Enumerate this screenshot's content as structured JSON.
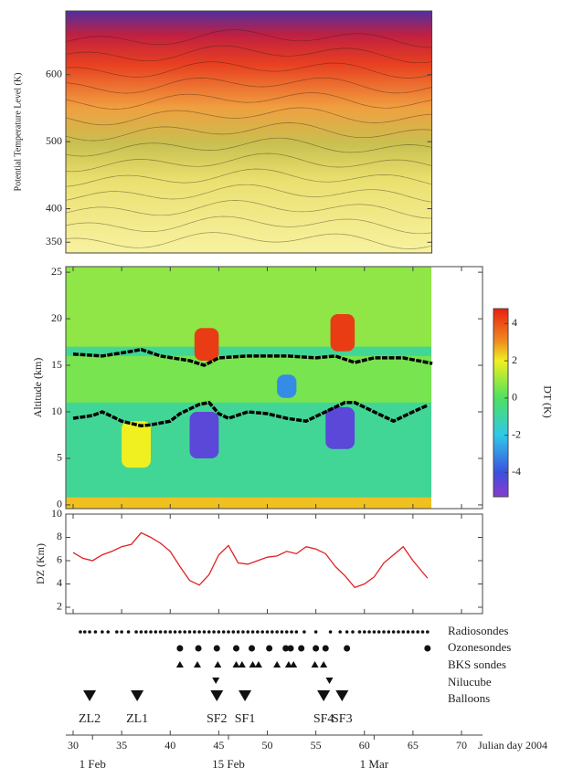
{
  "chart_data": [
    {
      "type": "contour",
      "ylabel": "Potential Temperature Level (K)",
      "ylim": [
        334,
        695
      ],
      "yticks": [
        350,
        400,
        500,
        600
      ],
      "xlim": [
        29.3,
        67
      ]
    },
    {
      "type": "heatmap",
      "ylabel": "Altitude (km)",
      "ylim": [
        -0.4,
        25.6
      ],
      "yticks": [
        0,
        5,
        10,
        15,
        20,
        25
      ],
      "xlim": [
        29.3,
        72
      ],
      "colorscale": [
        [
          -5,
          "#7b3fd0"
        ],
        [
          -4,
          "#3a50e0"
        ],
        [
          -2,
          "#30c8e8"
        ],
        [
          0,
          "#4ee060"
        ],
        [
          2,
          "#f0f020"
        ],
        [
          3,
          "#f09020"
        ],
        [
          5,
          "#e82010"
        ]
      ],
      "colorbar": {
        "label": "DT (K)",
        "lim": [
          -5.3,
          4.8
        ],
        "ticks": [
          -4,
          -2,
          0,
          2,
          4
        ]
      },
      "patches": [
        {
          "x": [
            29.3,
            67
          ],
          "y": [
            -0.4,
            25.6
          ],
          "value": -0.8
        },
        {
          "x": [
            29.3,
            67
          ],
          "y": [
            11,
            16
          ],
          "value": 0.5
        },
        {
          "x": [
            29.3,
            67
          ],
          "y": [
            17,
            25.6
          ],
          "value": 0.8
        },
        {
          "x": [
            29.3,
            67
          ],
          "y": [
            -0.4,
            0.8
          ],
          "value": 2.5
        },
        {
          "x": [
            35,
            38
          ],
          "y": [
            4,
            9
          ],
          "value": 2
        },
        {
          "x": [
            51,
            53
          ],
          "y": [
            11.5,
            14
          ],
          "value": -3
        },
        {
          "x": [
            42.5,
            45
          ],
          "y": [
            15.5,
            19
          ],
          "value": 4.5
        },
        {
          "x": [
            56.5,
            59
          ],
          "y": [
            16.5,
            20.5
          ],
          "value": 4.5
        },
        {
          "x": [
            42,
            45
          ],
          "y": [
            5,
            10
          ],
          "value": -4.5
        },
        {
          "x": [
            56,
            59
          ],
          "y": [
            6,
            10.5
          ],
          "value": -4.5
        }
      ],
      "lines": [
        {
          "color": "#000000",
          "x": [
            30,
            33,
            36,
            37,
            39,
            42,
            43.5,
            45,
            48,
            52,
            55,
            57,
            59,
            61,
            64,
            67
          ],
          "values": [
            16.2,
            16.0,
            16.5,
            16.7,
            16.0,
            15.5,
            15.0,
            15.8,
            16.0,
            16.0,
            15.8,
            16.0,
            15.3,
            15.8,
            15.8,
            15.2
          ]
        },
        {
          "color": "#000000",
          "x": [
            30,
            32,
            33,
            34,
            35,
            37,
            38,
            40,
            41,
            43,
            44,
            45,
            46,
            48,
            50,
            52,
            54,
            56,
            58,
            59,
            60,
            62,
            63,
            65,
            66.5
          ],
          "values": [
            9.3,
            9.6,
            10.0,
            9.5,
            9.0,
            8.5,
            8.6,
            9.0,
            9.8,
            10.8,
            11.0,
            9.8,
            9.3,
            10.0,
            9.8,
            9.3,
            9.0,
            10.0,
            11.0,
            11.0,
            10.5,
            9.5,
            9.0,
            10.0,
            10.7
          ]
        }
      ]
    },
    {
      "type": "line",
      "ylabel": "DZ (Km)",
      "ylim": [
        1.45,
        10
      ],
      "yticks": [
        2,
        4,
        6,
        8,
        10
      ],
      "xlim": [
        29.3,
        72
      ],
      "color": "#e02020",
      "x": [
        30,
        31,
        32,
        33,
        34,
        35,
        36,
        37,
        38,
        39,
        40,
        41,
        42,
        43,
        44,
        45,
        46,
        47,
        48,
        49,
        50,
        51,
        52,
        53,
        54,
        55,
        56,
        57,
        58,
        59,
        60,
        61,
        62,
        63,
        64,
        65,
        66,
        66.5
      ],
      "values": [
        6.7,
        6.2,
        6.0,
        6.5,
        6.8,
        7.2,
        7.4,
        8.4,
        8.0,
        7.5,
        6.8,
        5.5,
        4.3,
        3.9,
        4.8,
        6.5,
        7.3,
        5.8,
        5.7,
        6.0,
        6.3,
        6.4,
        6.8,
        6.6,
        7.2,
        7.0,
        6.6,
        5.5,
        4.7,
        3.7,
        4.0,
        4.6,
        5.8,
        6.5,
        7.2,
        6.0,
        5.0,
        4.5
      ]
    },
    {
      "type": "events",
      "xlim": [
        29.3,
        72
      ],
      "xticks": [
        30,
        35,
        40,
        45,
        50,
        55,
        60,
        65,
        70
      ],
      "xlabel": "Julian day 2004",
      "date_ticks": [
        {
          "value": 32,
          "label": "1 Feb"
        },
        {
          "value": 46,
          "label": "15 Feb"
        },
        {
          "value": 61,
          "label": "1 Mar"
        }
      ],
      "rows": [
        {
          "name": "Radiosondes",
          "marker": "dot",
          "x": [
            30.75,
            31.2,
            31.7,
            32.3,
            33,
            33.6,
            34.5,
            35,
            35.7,
            36.5,
            37,
            37.5,
            38,
            38.5,
            39,
            39.5,
            40,
            40.5,
            41,
            41.5,
            42,
            42.5,
            43,
            43.5,
            44,
            44.5,
            45,
            45.5,
            46,
            46.5,
            47,
            47.5,
            48,
            48.5,
            49,
            49.5,
            50,
            50.5,
            51,
            51.5,
            52,
            52.5,
            53,
            53.8,
            55,
            56.5,
            57.5,
            58.2,
            58.8,
            59.5,
            60,
            60.5,
            61,
            61.5,
            62,
            62.5,
            63,
            63.5,
            64,
            64.5,
            65,
            65.5,
            66,
            66.5
          ]
        },
        {
          "name": "Ozonesondes",
          "marker": "circle",
          "x": [
            41.0,
            42.9,
            44.8,
            46.8,
            48.4,
            50.2,
            51.9,
            52.4,
            53.5,
            55.0,
            56.0,
            58.2,
            66.5
          ]
        },
        {
          "name": "BKS sondes",
          "marker": "triangle-up",
          "x": [
            41.0,
            42.8,
            44.9,
            46.8,
            47.4,
            48.5,
            49.1,
            51.0,
            52.2,
            52.7,
            54.9,
            55.8
          ]
        },
        {
          "name": "Nilucube",
          "marker": "triangle-down-small",
          "x": [
            44.7,
            56.4
          ]
        },
        {
          "name": "Balloons",
          "marker": "triangle-down",
          "x": [
            31.7,
            36.6,
            44.8,
            47.7,
            55.8,
            57.7
          ],
          "labels": [
            "ZL2",
            "ZL1",
            "SF2",
            "SF1",
            "SF4",
            "SF3"
          ]
        }
      ]
    }
  ]
}
